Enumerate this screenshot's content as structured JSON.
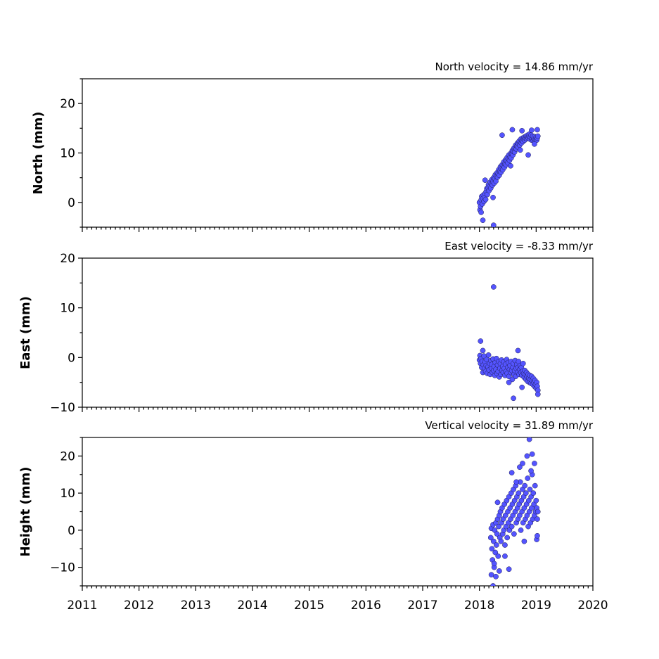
{
  "chart_data": [
    {
      "type": "scatter",
      "title": "North velocity = 14.86 mm/yr",
      "ylabel": "North (mm)",
      "xlim": [
        2011,
        2020
      ],
      "ylim": [
        -5,
        25
      ],
      "yticks": [
        0,
        10,
        20
      ],
      "show_x_tick_labels": false,
      "series": [
        {
          "color": "#5454ff",
          "x": [
            2018.0,
            2018.01,
            2018.02,
            2018.03,
            2018.04,
            2018.05,
            2018.06,
            2018.07,
            2018.08,
            2018.09,
            2018.1,
            2018.11,
            2018.12,
            2018.13,
            2018.14,
            2018.15,
            2018.16,
            2018.17,
            2018.18,
            2018.19,
            2018.2,
            2018.21,
            2018.22,
            2018.23,
            2018.24,
            2018.25,
            2018.26,
            2018.27,
            2018.28,
            2018.29,
            2018.3,
            2018.31,
            2018.32,
            2018.33,
            2018.34,
            2018.35,
            2018.36,
            2018.37,
            2018.38,
            2018.39,
            2018.4,
            2018.41,
            2018.42,
            2018.43,
            2018.44,
            2018.45,
            2018.46,
            2018.47,
            2018.48,
            2018.49,
            2018.5,
            2018.51,
            2018.52,
            2018.53,
            2018.54,
            2018.55,
            2018.56,
            2018.57,
            2018.58,
            2018.59,
            2018.6,
            2018.61,
            2018.62,
            2018.63,
            2018.64,
            2018.65,
            2018.66,
            2018.67,
            2018.68,
            2018.69,
            2018.7,
            2018.71,
            2018.72,
            2018.73,
            2018.74,
            2018.75,
            2018.76,
            2018.77,
            2018.78,
            2018.79,
            2018.8,
            2018.81,
            2018.82,
            2018.83,
            2018.84,
            2018.85,
            2018.86,
            2018.87,
            2018.88,
            2018.89,
            2018.9,
            2018.91,
            2018.92,
            2018.93,
            2018.94,
            2018.95,
            2018.96,
            2018.97,
            2018.98,
            2018.99,
            2019.0,
            2019.01,
            2019.02,
            2019.03,
            2018.03,
            2018.1,
            2018.25,
            2018.4,
            2018.58,
            2018.75,
            2018.86,
            2018.92,
            2019.02,
            2018.06,
            2018.24,
            2018.55,
            2018.72,
            2018.97
          ],
          "y": [
            0.0,
            -1.5,
            -0.8,
            0.5,
            1.2,
            -0.3,
            0.8,
            1.5,
            0.2,
            1.0,
            1.8,
            0.6,
            2.2,
            2.8,
            1.6,
            3.0,
            3.6,
            2.4,
            3.2,
            4.1,
            2.9,
            3.8,
            4.6,
            3.5,
            4.2,
            5.0,
            3.9,
            4.8,
            5.6,
            4.3,
            5.2,
            6.0,
            5.1,
            5.8,
            6.6,
            5.5,
            6.3,
            7.2,
            6.1,
            6.8,
            7.6,
            6.6,
            7.4,
            8.2,
            7.1,
            7.8,
            8.6,
            7.6,
            8.4,
            9.1,
            8.0,
            8.8,
            9.6,
            8.5,
            9.2,
            9.9,
            9.0,
            9.8,
            10.5,
            9.6,
            10.3,
            11.0,
            10.2,
            10.9,
            11.6,
            10.8,
            11.4,
            12.0,
            11.2,
            11.8,
            12.4,
            11.6,
            12.2,
            12.8,
            12.0,
            12.5,
            13.0,
            12.3,
            12.8,
            13.2,
            12.6,
            13.0,
            13.4,
            12.9,
            13.3,
            13.6,
            13.0,
            13.4,
            13.8,
            12.8,
            13.2,
            13.6,
            12.6,
            13.0,
            13.4,
            12.5,
            12.9,
            13.3,
            12.4,
            12.8,
            13.2,
            12.6,
            13.0,
            13.4,
            -2.0,
            4.5,
            -4.6,
            13.6,
            14.7,
            14.5,
            9.6,
            14.6,
            14.7,
            -3.6,
            1.0,
            7.4,
            10.6,
            11.8
          ]
        }
      ]
    },
    {
      "type": "scatter",
      "title": "East velocity = -8.33 mm/yr",
      "ylabel": "East (mm)",
      "xlim": [
        2011,
        2020
      ],
      "ylim": [
        -10,
        20
      ],
      "yticks": [
        -10,
        0,
        10,
        20
      ],
      "show_x_tick_labels": false,
      "series": [
        {
          "color": "#5454ff",
          "x": [
            2018.0,
            2018.01,
            2018.02,
            2018.03,
            2018.04,
            2018.05,
            2018.06,
            2018.07,
            2018.08,
            2018.09,
            2018.1,
            2018.11,
            2018.12,
            2018.13,
            2018.14,
            2018.15,
            2018.16,
            2018.17,
            2018.18,
            2018.19,
            2018.2,
            2018.21,
            2018.22,
            2018.23,
            2018.24,
            2018.25,
            2018.26,
            2018.27,
            2018.28,
            2018.29,
            2018.3,
            2018.31,
            2018.32,
            2018.33,
            2018.34,
            2018.35,
            2018.36,
            2018.37,
            2018.38,
            2018.39,
            2018.4,
            2018.41,
            2018.42,
            2018.43,
            2018.44,
            2018.45,
            2018.46,
            2018.47,
            2018.48,
            2018.49,
            2018.5,
            2018.51,
            2018.52,
            2018.53,
            2018.54,
            2018.55,
            2018.56,
            2018.57,
            2018.58,
            2018.59,
            2018.6,
            2018.61,
            2018.62,
            2018.63,
            2018.64,
            2018.65,
            2018.66,
            2018.67,
            2018.68,
            2018.69,
            2018.7,
            2018.71,
            2018.72,
            2018.73,
            2018.74,
            2018.75,
            2018.76,
            2018.77,
            2018.78,
            2018.79,
            2018.8,
            2018.81,
            2018.82,
            2018.83,
            2018.84,
            2018.85,
            2018.86,
            2018.87,
            2018.88,
            2018.89,
            2018.9,
            2018.91,
            2018.92,
            2018.93,
            2018.94,
            2018.95,
            2018.96,
            2018.97,
            2018.98,
            2018.99,
            2019.0,
            2019.01,
            2019.02,
            2019.03,
            2018.25,
            2018.02,
            2018.06,
            2018.52,
            2018.68,
            2018.75,
            2018.6,
            2019.03
          ],
          "y": [
            -0.5,
            0.4,
            -1.2,
            -0.2,
            -2.0,
            -0.8,
            -3.0,
            -1.5,
            0.3,
            -2.2,
            -0.9,
            -2.8,
            -1.6,
            -0.4,
            -3.2,
            -1.9,
            0.5,
            -2.5,
            -1.2,
            -3.4,
            -0.6,
            -2.1,
            -1.4,
            -3.0,
            -0.3,
            -2.6,
            -1.8,
            -3.6,
            -1.0,
            -2.4,
            -0.2,
            -3.2,
            -1.5,
            -2.8,
            -0.8,
            -3.9,
            -2.2,
            -1.2,
            -3.4,
            -0.5,
            -2.6,
            -1.8,
            -3.0,
            -0.9,
            -2.2,
            -3.6,
            -1.4,
            -2.8,
            -0.4,
            -3.2,
            -2.0,
            -1.0,
            -3.8,
            -2.4,
            -1.6,
            -3.0,
            -0.8,
            -2.6,
            -4.4,
            -2.0,
            -1.2,
            -3.4,
            -2.6,
            -0.6,
            -3.8,
            -2.2,
            -1.4,
            -3.0,
            -2.0,
            -0.8,
            -3.4,
            -2.4,
            -1.6,
            -3.0,
            -2.0,
            -3.6,
            -2.8,
            -1.2,
            -3.2,
            -4.0,
            -2.6,
            -3.4,
            -4.4,
            -3.0,
            -3.8,
            -4.8,
            -3.4,
            -4.2,
            -5.0,
            -3.6,
            -4.4,
            -5.2,
            -3.8,
            -4.6,
            -5.4,
            -4.2,
            -5.0,
            -5.8,
            -4.6,
            -5.4,
            -6.2,
            -5.0,
            -5.8,
            -6.6,
            14.2,
            3.3,
            1.4,
            -5.0,
            1.4,
            -6.0,
            -8.2,
            -7.4
          ]
        }
      ]
    },
    {
      "type": "scatter",
      "title": "Vertical velocity = 31.89 mm/yr",
      "ylabel": "Height (mm)",
      "xlim": [
        2011,
        2020
      ],
      "ylim": [
        -15,
        25
      ],
      "yticks": [
        -10,
        0,
        10,
        20
      ],
      "xticks": [
        2011,
        2012,
        2013,
        2014,
        2015,
        2016,
        2017,
        2018,
        2019,
        2020
      ],
      "show_x_tick_labels": true,
      "series": [
        {
          "color": "#5454ff",
          "x": [
            2018.2,
            2018.21,
            2018.22,
            2018.23,
            2018.24,
            2018.25,
            2018.26,
            2018.27,
            2018.28,
            2018.29,
            2018.3,
            2018.31,
            2018.32,
            2018.33,
            2018.34,
            2018.35,
            2018.36,
            2018.37,
            2018.38,
            2018.39,
            2018.4,
            2018.41,
            2018.42,
            2018.43,
            2018.44,
            2018.45,
            2018.46,
            2018.47,
            2018.48,
            2018.49,
            2018.5,
            2018.51,
            2018.52,
            2018.53,
            2018.54,
            2018.55,
            2018.56,
            2018.57,
            2018.58,
            2018.59,
            2018.6,
            2018.61,
            2018.62,
            2018.63,
            2018.64,
            2018.65,
            2018.66,
            2018.67,
            2018.68,
            2018.69,
            2018.7,
            2018.71,
            2018.72,
            2018.73,
            2018.74,
            2018.75,
            2018.76,
            2018.77,
            2018.78,
            2018.79,
            2018.8,
            2018.81,
            2018.82,
            2018.83,
            2018.84,
            2018.85,
            2018.86,
            2018.87,
            2018.88,
            2018.89,
            2018.9,
            2018.91,
            2018.92,
            2018.93,
            2018.94,
            2018.95,
            2018.96,
            2018.97,
            2018.98,
            2018.99,
            2019.0,
            2019.01,
            2019.02,
            2019.03,
            2018.21,
            2018.24,
            2018.26,
            2018.29,
            2018.32,
            2018.35,
            2018.45,
            2018.52,
            2018.57,
            2018.65,
            2018.71,
            2018.76,
            2018.79,
            2018.84,
            2018.88,
            2018.91,
            2018.93,
            2018.97,
            2019.01,
            2019.02
          ],
          "y": [
            -2.0,
            0.5,
            -5.0,
            -8.0,
            1.5,
            -3.0,
            -10.0,
            0.0,
            -6.0,
            2.0,
            -4.0,
            -1.0,
            3.0,
            -7.0,
            1.0,
            4.0,
            -2.0,
            5.0,
            -3.0,
            2.0,
            6.0,
            -1.0,
            3.0,
            0.0,
            7.0,
            -4.0,
            4.0,
            1.0,
            8.0,
            -2.0,
            5.0,
            2.0,
            9.0,
            0.0,
            6.0,
            3.0,
            10.0,
            1.0,
            7.0,
            4.0,
            11.0,
            -1.0,
            8.0,
            5.0,
            12.0,
            2.0,
            9.0,
            6.0,
            3.0,
            10.0,
            7.0,
            4.0,
            13.0,
            0.0,
            8.0,
            5.0,
            11.0,
            2.0,
            9.0,
            6.0,
            12.0,
            3.0,
            10.0,
            7.0,
            4.0,
            14.0,
            1.0,
            8.0,
            5.0,
            11.0,
            2.0,
            9.0,
            6.0,
            15.0,
            3.0,
            10.0,
            7.0,
            4.0,
            12.0,
            5.0,
            8.0,
            6.0,
            3.0,
            5.0,
            -12.0,
            -15.0,
            -9.0,
            -12.5,
            7.5,
            -11.0,
            -7.0,
            -10.5,
            15.5,
            13.0,
            17.0,
            18.0,
            -3.0,
            20.0,
            24.5,
            16.0,
            20.5,
            18.0,
            -2.5,
            -1.5
          ]
        }
      ]
    }
  ]
}
